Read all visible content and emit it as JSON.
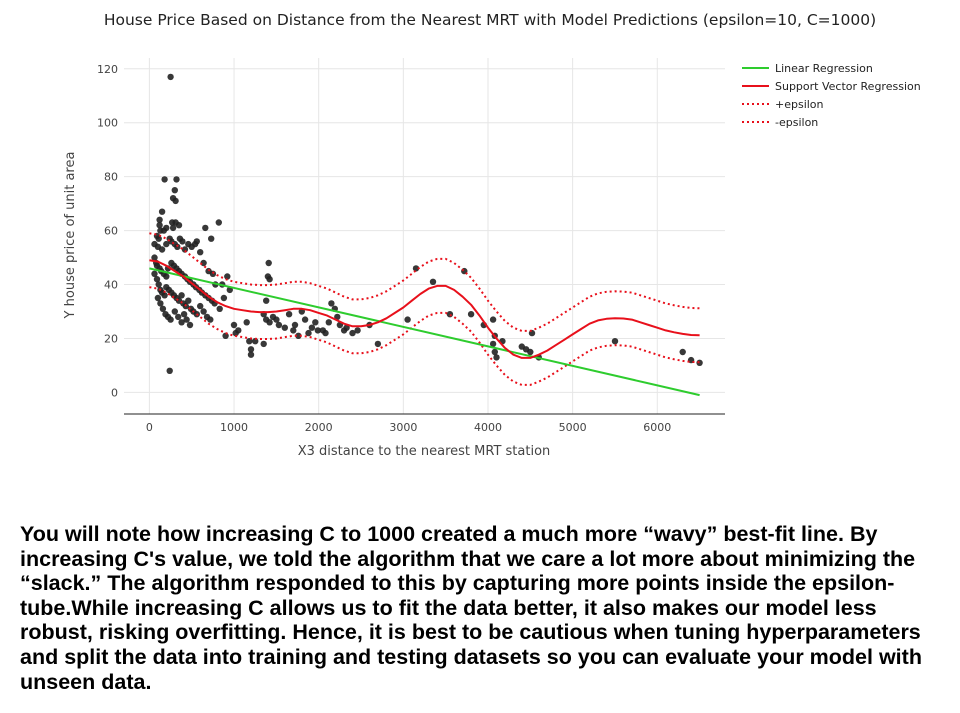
{
  "chart_data": {
    "type": "scatter",
    "title": "House Price Based on Distance from the Nearest MRT with Model Predictions (epsilon=10, C=1000)",
    "xlabel": "X3 distance to the nearest MRT station",
    "ylabel": "Y house price of unit area",
    "xlim": [
      -300,
      6800
    ],
    "ylim": [
      -8,
      124
    ],
    "x_ticks": [
      0,
      1000,
      2000,
      3000,
      4000,
      5000,
      6000
    ],
    "y_ticks": [
      0,
      20,
      40,
      60,
      80,
      100,
      120
    ],
    "grid": true,
    "legend_position": "top-right",
    "colors": {
      "points": "#222222",
      "linear": "#2ecc2e",
      "svr": "#e8101b",
      "band": "#e8101b"
    },
    "series": [
      {
        "name": "Linear Regression",
        "style": "solid",
        "color": "#2ecc2e",
        "x": [
          0,
          6500
        ],
        "y": [
          46,
          -1
        ]
      },
      {
        "name": "Support Vector Regression",
        "style": "solid",
        "color": "#e8101b",
        "x": [
          0,
          100,
          200,
          300,
          400,
          500,
          600,
          700,
          800,
          900,
          1000,
          1100,
          1200,
          1300,
          1400,
          1500,
          1600,
          1700,
          1800,
          1900,
          2000,
          2100,
          2200,
          2300,
          2400,
          2500,
          2600,
          2700,
          2800,
          2900,
          3000,
          3100,
          3200,
          3300,
          3400,
          3500,
          3600,
          3700,
          3800,
          3900,
          4000,
          4100,
          4200,
          4300,
          4400,
          4500,
          4600,
          4700,
          4800,
          4900,
          5000,
          5100,
          5200,
          5300,
          5400,
          5500,
          5600,
          5700,
          5800,
          5900,
          6000,
          6100,
          6200,
          6300,
          6400,
          6500
        ],
        "y": [
          49,
          48.5,
          47,
          45,
          43,
          40.5,
          38,
          35.5,
          33.5,
          32,
          31,
          30.5,
          30,
          29.8,
          29.8,
          30,
          30.5,
          31,
          31,
          30.5,
          29.5,
          28.5,
          27,
          25.5,
          24.5,
          24.5,
          25,
          26,
          27.5,
          29.5,
          31.5,
          34,
          36.5,
          38.5,
          39.5,
          39.5,
          38,
          35.5,
          32.5,
          28.5,
          24,
          20,
          16.5,
          14,
          12.8,
          12.8,
          14,
          15.5,
          17.5,
          19.5,
          21.5,
          23.5,
          25.5,
          26.7,
          27.3,
          27.5,
          27.4,
          27,
          26,
          25,
          24,
          23,
          22.3,
          21.7,
          21.3,
          21.2
        ]
      },
      {
        "name": "+epsilon",
        "style": "dotted",
        "color": "#e8101b",
        "x": [
          0,
          100,
          200,
          300,
          400,
          500,
          600,
          700,
          800,
          900,
          1000,
          1100,
          1200,
          1300,
          1400,
          1500,
          1600,
          1700,
          1800,
          1900,
          2000,
          2100,
          2200,
          2300,
          2400,
          2500,
          2600,
          2700,
          2800,
          2900,
          3000,
          3100,
          3200,
          3300,
          3400,
          3500,
          3600,
          3700,
          3800,
          3900,
          4000,
          4100,
          4200,
          4300,
          4400,
          4500,
          4600,
          4700,
          4800,
          4900,
          5000,
          5100,
          5200,
          5300,
          5400,
          5500,
          5600,
          5700,
          5800,
          5900,
          6000,
          6100,
          6200,
          6300,
          6400,
          6500
        ],
        "y": [
          59,
          58.5,
          57,
          55,
          53,
          50.5,
          48,
          45.5,
          43.5,
          42,
          41,
          40.5,
          40,
          39.8,
          39.8,
          40,
          40.5,
          41,
          41,
          40.5,
          39.5,
          38.5,
          37,
          35.5,
          34.5,
          34.5,
          35,
          36,
          37.5,
          39.5,
          41.5,
          44,
          46.5,
          48.5,
          49.5,
          49.5,
          48,
          45.5,
          42.5,
          38.5,
          34,
          30,
          26.5,
          24,
          22.8,
          22.8,
          24,
          25.5,
          27.5,
          29.5,
          31.5,
          33.5,
          35.5,
          36.7,
          37.3,
          37.5,
          37.4,
          37,
          36,
          35,
          34,
          33,
          32.3,
          31.7,
          31.3,
          31.2
        ]
      },
      {
        "name": "-epsilon",
        "style": "dotted",
        "color": "#e8101b",
        "x": [
          0,
          100,
          200,
          300,
          400,
          500,
          600,
          700,
          800,
          900,
          1000,
          1100,
          1200,
          1300,
          1400,
          1500,
          1600,
          1700,
          1800,
          1900,
          2000,
          2100,
          2200,
          2300,
          2400,
          2500,
          2600,
          2700,
          2800,
          2900,
          3000,
          3100,
          3200,
          3300,
          3400,
          3500,
          3600,
          3700,
          3800,
          3900,
          4000,
          4100,
          4200,
          4300,
          4400,
          4500,
          4600,
          4700,
          4800,
          4900,
          5000,
          5100,
          5200,
          5300,
          5400,
          5500,
          5600,
          5700,
          5800,
          5900,
          6000,
          6100,
          6200,
          6300,
          6400,
          6500
        ],
        "y": [
          39,
          38.5,
          37,
          35,
          33,
          30.5,
          28,
          25.5,
          23.5,
          22,
          21,
          20.5,
          20,
          19.8,
          19.8,
          20,
          20.5,
          21,
          21,
          20.5,
          19.5,
          18.5,
          17,
          15.5,
          14.5,
          14.5,
          15,
          16,
          17.5,
          19.5,
          21.5,
          24,
          26.5,
          28.5,
          29.5,
          29.5,
          28,
          25.5,
          22.5,
          18.5,
          14,
          10,
          6.5,
          4,
          2.8,
          2.8,
          4,
          5.5,
          7.5,
          9.5,
          11.5,
          13.5,
          15.5,
          16.7,
          17.3,
          17.5,
          17.4,
          17,
          16,
          15,
          14,
          13,
          12.3,
          11.7,
          11.3,
          11.2
        ]
      }
    ],
    "points": [
      [
        250,
        117
      ],
      [
        180,
        79
      ],
      [
        320,
        79
      ],
      [
        300,
        75
      ],
      [
        310,
        71
      ],
      [
        280,
        72
      ],
      [
        120,
        64
      ],
      [
        150,
        67
      ],
      [
        120,
        62
      ],
      [
        270,
        63
      ],
      [
        310,
        63
      ],
      [
        350,
        62
      ],
      [
        280,
        61
      ],
      [
        200,
        61
      ],
      [
        130,
        60
      ],
      [
        170,
        60
      ],
      [
        90,
        58
      ],
      [
        110,
        57
      ],
      [
        60,
        55
      ],
      [
        100,
        54
      ],
      [
        150,
        53
      ],
      [
        200,
        55
      ],
      [
        240,
        57
      ],
      [
        260,
        56
      ],
      [
        300,
        55
      ],
      [
        330,
        54
      ],
      [
        360,
        57
      ],
      [
        390,
        56
      ],
      [
        420,
        53
      ],
      [
        460,
        55
      ],
      [
        500,
        54
      ],
      [
        540,
        55
      ],
      [
        560,
        56
      ],
      [
        600,
        52
      ],
      [
        660,
        61
      ],
      [
        820,
        63
      ],
      [
        730,
        57
      ],
      [
        640,
        48
      ],
      [
        700,
        45
      ],
      [
        750,
        44
      ],
      [
        780,
        40
      ],
      [
        60,
        50
      ],
      [
        80,
        48
      ],
      [
        90,
        47
      ],
      [
        120,
        46
      ],
      [
        140,
        45
      ],
      [
        170,
        44
      ],
      [
        200,
        43
      ],
      [
        220,
        46
      ],
      [
        260,
        48
      ],
      [
        290,
        47
      ],
      [
        320,
        46
      ],
      [
        350,
        45
      ],
      [
        380,
        44
      ],
      [
        420,
        43
      ],
      [
        450,
        42
      ],
      [
        480,
        41
      ],
      [
        520,
        40
      ],
      [
        550,
        39
      ],
      [
        590,
        38
      ],
      [
        620,
        37
      ],
      [
        660,
        36
      ],
      [
        700,
        35
      ],
      [
        740,
        34
      ],
      [
        770,
        33
      ],
      [
        60,
        44
      ],
      [
        90,
        42
      ],
      [
        110,
        40
      ],
      [
        130,
        38
      ],
      [
        150,
        37
      ],
      [
        180,
        36
      ],
      [
        200,
        39
      ],
      [
        230,
        38
      ],
      [
        260,
        37
      ],
      [
        290,
        36
      ],
      [
        320,
        35
      ],
      [
        350,
        34
      ],
      [
        380,
        36
      ],
      [
        400,
        33
      ],
      [
        430,
        32
      ],
      [
        460,
        34
      ],
      [
        490,
        31
      ],
      [
        520,
        30
      ],
      [
        560,
        29
      ],
      [
        600,
        32
      ],
      [
        640,
        30
      ],
      [
        680,
        28
      ],
      [
        720,
        27
      ],
      [
        100,
        35
      ],
      [
        130,
        33
      ],
      [
        160,
        31
      ],
      [
        190,
        29
      ],
      [
        220,
        28
      ],
      [
        250,
        27
      ],
      [
        300,
        30
      ],
      [
        340,
        28
      ],
      [
        380,
        26
      ],
      [
        410,
        29
      ],
      [
        440,
        27
      ],
      [
        480,
        25
      ],
      [
        240,
        8
      ],
      [
        860,
        40
      ],
      [
        920,
        43
      ],
      [
        950,
        38
      ],
      [
        880,
        35
      ],
      [
        830,
        31
      ],
      [
        1000,
        25
      ],
      [
        1020,
        22
      ],
      [
        900,
        21
      ],
      [
        1050,
        23
      ],
      [
        1150,
        26
      ],
      [
        1180,
        19
      ],
      [
        1200,
        16
      ],
      [
        1200,
        14
      ],
      [
        1250,
        19
      ],
      [
        1350,
        18
      ],
      [
        1380,
        34
      ],
      [
        1400,
        43
      ],
      [
        1420,
        42
      ],
      [
        1410,
        48
      ],
      [
        1350,
        29
      ],
      [
        1380,
        27
      ],
      [
        1420,
        26
      ],
      [
        1460,
        28
      ],
      [
        1500,
        27
      ],
      [
        1530,
        25
      ],
      [
        1600,
        24
      ],
      [
        1650,
        29
      ],
      [
        1700,
        23
      ],
      [
        1720,
        25
      ],
      [
        1760,
        21
      ],
      [
        1800,
        30
      ],
      [
        1840,
        27
      ],
      [
        1880,
        22
      ],
      [
        1920,
        24
      ],
      [
        1960,
        26
      ],
      [
        1990,
        23
      ],
      [
        2050,
        23
      ],
      [
        2080,
        22
      ],
      [
        2120,
        26
      ],
      [
        2150,
        33
      ],
      [
        2190,
        31
      ],
      [
        2220,
        28
      ],
      [
        2250,
        25
      ],
      [
        2300,
        23
      ],
      [
        2330,
        24
      ],
      [
        2400,
        22
      ],
      [
        2460,
        23
      ],
      [
        2600,
        25
      ],
      [
        2700,
        18
      ],
      [
        3050,
        27
      ],
      [
        3150,
        46
      ],
      [
        3350,
        41
      ],
      [
        3550,
        29
      ],
      [
        3720,
        45
      ],
      [
        3800,
        29
      ],
      [
        3950,
        25
      ],
      [
        4060,
        27
      ],
      [
        4080,
        21
      ],
      [
        4060,
        18
      ],
      [
        4080,
        15
      ],
      [
        4100,
        13
      ],
      [
        4170,
        19
      ],
      [
        4400,
        17
      ],
      [
        4450,
        16
      ],
      [
        4500,
        15
      ],
      [
        4520,
        22
      ],
      [
        4600,
        13
      ],
      [
        5500,
        19
      ],
      [
        6300,
        15
      ],
      [
        6400,
        12
      ],
      [
        6500,
        11
      ]
    ]
  },
  "legend": {
    "linear": "Linear Regression",
    "svr": "Support Vector Regression",
    "plus_eps": "+epsilon",
    "minus_eps": "-epsilon"
  },
  "explanation": "You will note how increasing C to 1000 created a much more “wavy” best-fit line. By increasing C's value, we told the algorithm that we care a lot more about minimizing the “slack.” The algorithm responded to this by capturing more points inside the epsilon-tube.While increasing C allows us to fit the data better, it also makes our model less robust, risking overfitting. Hence, it is best to be cautious when tuning hyperparameters and split the data into training and testing datasets so you can evaluate your model with unseen data."
}
